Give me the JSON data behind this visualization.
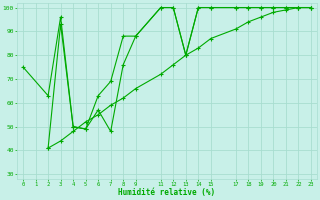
{
  "title": "",
  "xlabel": "Humidité relative (%)",
  "ylabel": "",
  "xlim": [
    -0.5,
    23.5
  ],
  "ylim": [
    28,
    102
  ],
  "xtick_values": [
    0,
    1,
    2,
    3,
    4,
    5,
    6,
    7,
    8,
    9,
    11,
    12,
    13,
    14,
    15,
    17,
    18,
    19,
    20,
    21,
    22,
    23
  ],
  "ytick_values": [
    30,
    40,
    50,
    60,
    70,
    80,
    90,
    100
  ],
  "background_color": "#c8f0e8",
  "grid_color": "#a8ddd0",
  "line_color": "#00aa00",
  "marker_color": "#00aa00",
  "series1_x": [
    0,
    2,
    3,
    4,
    5,
    6,
    7,
    8,
    9,
    11,
    12,
    13,
    14,
    15,
    17,
    18,
    19,
    20,
    21,
    22,
    23
  ],
  "series1_y": [
    75,
    63,
    96,
    50,
    49,
    63,
    69,
    88,
    88,
    100,
    100,
    80,
    100,
    100,
    100,
    100,
    100,
    100,
    100,
    100,
    100
  ],
  "series2_x": [
    2,
    3,
    4,
    5,
    6,
    7,
    8,
    9,
    11,
    12,
    13,
    14,
    15,
    17,
    18,
    19,
    20,
    21,
    22,
    23
  ],
  "series2_y": [
    41,
    93,
    50,
    49,
    57,
    48,
    76,
    88,
    100,
    100,
    80,
    100,
    100,
    100,
    100,
    100,
    100,
    100,
    100,
    100
  ],
  "series3_x": [
    2,
    3,
    4,
    5,
    6,
    7,
    8,
    9,
    11,
    12,
    13,
    14,
    15,
    17,
    18,
    19,
    20,
    21,
    22,
    23
  ],
  "series3_y": [
    41,
    44,
    48,
    52,
    55,
    59,
    62,
    66,
    72,
    76,
    80,
    83,
    87,
    91,
    94,
    96,
    98,
    99,
    100,
    100
  ]
}
